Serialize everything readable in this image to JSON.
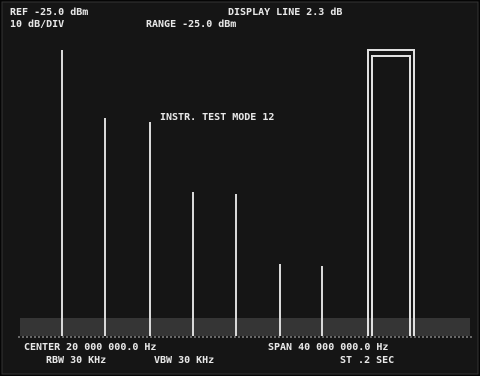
{
  "header": {
    "reference": "REF -25.0 dBm",
    "display_line": "DISPLAY LINE 2.3 dB",
    "scale": "10 dB/DIV",
    "range": "RANGE -25.0 dBm"
  },
  "annotation": "INSTR. TEST MODE 12",
  "footer": {
    "center": "CENTER 20 000 000.0 Hz",
    "span": "SPAN 40 000 000.0 Hz",
    "rbw": "RBW 30 KHz",
    "vbw": "VBW 30 KHz",
    "sweep": "ST .2 SEC"
  }
}
